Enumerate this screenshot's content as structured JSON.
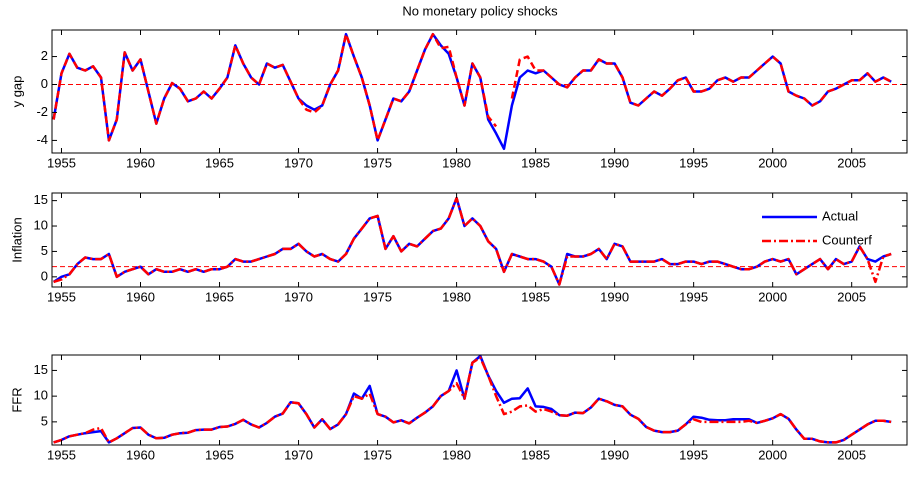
{
  "chart_data": [
    {
      "type": "line",
      "title": "No monetary policy shocks",
      "ylabel": "y gap",
      "x": [
        1954.5,
        1955,
        1955.5,
        1956,
        1956.5,
        1957,
        1957.5,
        1958,
        1958.5,
        1959,
        1959.5,
        1960,
        1960.5,
        1961,
        1961.5,
        1962,
        1962.5,
        1963,
        1963.5,
        1964,
        1964.5,
        1965,
        1965.5,
        1966,
        1966.5,
        1967,
        1967.5,
        1968,
        1968.5,
        1969,
        1969.5,
        1970,
        1970.5,
        1971,
        1971.5,
        1972,
        1972.5,
        1973,
        1973.5,
        1974,
        1974.5,
        1975,
        1975.5,
        1976,
        1976.5,
        1977,
        1977.5,
        1978,
        1978.5,
        1979,
        1979.5,
        1980,
        1980.5,
        1981,
        1981.5,
        1982,
        1982.5,
        1983,
        1983.5,
        1984,
        1984.5,
        1985,
        1985.5,
        1986,
        1986.5,
        1987,
        1987.5,
        1988,
        1988.5,
        1989,
        1989.5,
        1990,
        1990.5,
        1991,
        1991.5,
        1992,
        1992.5,
        1993,
        1993.5,
        1994,
        1994.5,
        1995,
        1995.5,
        1996,
        1996.5,
        1997,
        1997.5,
        1998,
        1998.5,
        1999,
        1999.5,
        2000,
        2000.5,
        2001,
        2001.5,
        2002,
        2002.5,
        2003,
        2003.5,
        2004,
        2004.5,
        2005,
        2005.5,
        2006,
        2006.5,
        2007,
        2007.5
      ],
      "series": [
        {
          "color": "#0000ff",
          "style": "solid",
          "values": [
            -2.5,
            0.8,
            2.2,
            1.2,
            1.0,
            1.3,
            0.5,
            -4.0,
            -2.5,
            2.3,
            1.0,
            1.8,
            -0.5,
            -2.8,
            -1.0,
            0.1,
            -0.3,
            -1.2,
            -1.0,
            -0.5,
            -1.0,
            -0.3,
            0.5,
            2.8,
            1.5,
            0.5,
            0.0,
            1.5,
            1.2,
            1.4,
            0.2,
            -1.0,
            -1.5,
            -1.8,
            -1.5,
            0.0,
            1.0,
            3.6,
            2.0,
            0.5,
            -1.5,
            -4.0,
            -2.5,
            -1.0,
            -1.2,
            -0.5,
            1.0,
            2.5,
            3.6,
            2.8,
            2.2,
            0.5,
            -1.5,
            1.5,
            0.5,
            -2.5,
            -3.5,
            -4.6,
            -1.5,
            0.5,
            1.0,
            0.8,
            1.0,
            0.5,
            0.0,
            -0.2,
            0.5,
            1.0,
            1.0,
            1.8,
            1.5,
            1.5,
            0.5,
            -1.3,
            -1.5,
            -1.0,
            -0.5,
            -0.8,
            -0.3,
            0.3,
            0.5,
            -0.5,
            -0.5,
            -0.3,
            0.3,
            0.5,
            0.2,
            0.5,
            0.5,
            1.0,
            1.5,
            2.0,
            1.5,
            -0.5,
            -0.8,
            -1.0,
            -1.5,
            -1.2,
            -0.5,
            -0.3,
            0.0,
            0.3,
            0.3,
            0.8,
            0.2,
            0.5,
            0.2
          ]
        },
        {
          "color": "#ff0000",
          "style": "dashed",
          "values": [
            -2.5,
            0.8,
            2.2,
            1.2,
            1.0,
            1.3,
            0.5,
            -4.0,
            -2.5,
            2.3,
            1.0,
            1.8,
            -0.5,
            -2.8,
            -1.0,
            0.1,
            -0.3,
            -1.2,
            -1.0,
            -0.5,
            -1.0,
            -0.3,
            0.5,
            2.8,
            1.5,
            0.5,
            0.0,
            1.5,
            1.2,
            1.4,
            0.2,
            -1.0,
            -1.8,
            -2.0,
            -1.5,
            0.0,
            1.0,
            3.6,
            2.0,
            0.5,
            -1.5,
            -4.0,
            -2.5,
            -1.0,
            -1.2,
            -0.5,
            1.0,
            2.5,
            3.6,
            2.6,
            2.7,
            0.5,
            -1.5,
            1.5,
            0.5,
            -2.3,
            -3.0,
            null,
            -1.0,
            1.8,
            2.0,
            1.0,
            1.0,
            0.5,
            0.0,
            -0.2,
            0.5,
            1.0,
            1.0,
            1.8,
            1.5,
            1.5,
            0.5,
            -1.3,
            -1.5,
            -1.0,
            -0.5,
            -0.8,
            -0.3,
            0.3,
            0.5,
            -0.5,
            -0.5,
            -0.3,
            0.3,
            0.5,
            0.2,
            0.5,
            0.5,
            1.0,
            1.5,
            2.0,
            1.5,
            -0.5,
            -0.8,
            -1.0,
            -1.5,
            -1.2,
            -0.5,
            -0.3,
            0.0,
            0.3,
            0.3,
            0.8,
            0.2,
            0.5,
            0.2
          ]
        }
      ],
      "hline": 0,
      "xlim": [
        1954.4,
        2008.5
      ],
      "ylim": [
        -4.9,
        3.9
      ],
      "xticks": [
        1955,
        1960,
        1965,
        1970,
        1975,
        1980,
        1985,
        1990,
        1995,
        2000,
        2005
      ],
      "yticks": [
        -4,
        -2,
        0,
        2
      ]
    },
    {
      "type": "line",
      "ylabel": "Inflation",
      "x": [
        1954.5,
        1955,
        1955.5,
        1956,
        1956.5,
        1957,
        1957.5,
        1958,
        1958.5,
        1959,
        1959.5,
        1960,
        1960.5,
        1961,
        1961.5,
        1962,
        1962.5,
        1963,
        1963.5,
        1964,
        1964.5,
        1965,
        1965.5,
        1966,
        1966.5,
        1967,
        1967.5,
        1968,
        1968.5,
        1969,
        1969.5,
        1970,
        1970.5,
        1971,
        1971.5,
        1972,
        1972.5,
        1973,
        1973.5,
        1974,
        1974.5,
        1975,
        1975.5,
        1976,
        1976.5,
        1977,
        1977.5,
        1978,
        1978.5,
        1979,
        1979.5,
        1980,
        1980.5,
        1981,
        1981.5,
        1982,
        1982.5,
        1983,
        1983.5,
        1984,
        1984.5,
        1985,
        1985.5,
        1986,
        1986.5,
        1987,
        1987.5,
        1988,
        1988.5,
        1989,
        1989.5,
        1990,
        1990.5,
        1991,
        1991.5,
        1992,
        1992.5,
        1993,
        1993.5,
        1994,
        1994.5,
        1995,
        1995.5,
        1996,
        1996.5,
        1997,
        1997.5,
        1998,
        1998.5,
        1999,
        1999.5,
        2000,
        2000.5,
        2001,
        2001.5,
        2002,
        2002.5,
        2003,
        2003.5,
        2004,
        2004.5,
        2005,
        2005.5,
        2006,
        2006.5,
        2007,
        2007.5
      ],
      "series": [
        {
          "name": "Actual",
          "color": "#0000ff",
          "style": "solid",
          "values": [
            -1.0,
            0.0,
            0.5,
            2.5,
            3.8,
            3.5,
            3.5,
            4.5,
            0.0,
            1.0,
            1.5,
            2.0,
            0.5,
            1.5,
            1.0,
            1.0,
            1.5,
            1.0,
            1.5,
            1.0,
            1.5,
            1.5,
            2.0,
            3.5,
            3.0,
            3.0,
            3.5,
            4.0,
            4.5,
            5.5,
            5.5,
            6.5,
            5.0,
            4.0,
            4.5,
            3.5,
            3.0,
            4.5,
            7.5,
            9.5,
            11.5,
            12.0,
            5.5,
            8.0,
            5.0,
            6.5,
            6.0,
            7.5,
            9.0,
            9.5,
            11.5,
            15.5,
            10.0,
            11.5,
            10.0,
            7.0,
            5.5,
            1.0,
            4.5,
            4.0,
            3.5,
            3.5,
            3.0,
            2.0,
            -1.5,
            4.5,
            4.0,
            4.0,
            4.5,
            5.5,
            3.5,
            6.5,
            6.0,
            3.0,
            3.0,
            3.0,
            3.0,
            3.5,
            2.5,
            2.5,
            3.0,
            3.0,
            2.5,
            3.0,
            3.0,
            2.5,
            2.0,
            1.5,
            1.5,
            2.0,
            3.0,
            3.5,
            3.0,
            3.5,
            0.5,
            1.5,
            2.5,
            3.5,
            1.5,
            3.5,
            2.5,
            3.0,
            6.0,
            3.5,
            3.0,
            4.0,
            4.5
          ]
        },
        {
          "name": "Counterf",
          "color": "#ff0000",
          "style": "dashdot",
          "values": [
            -1.0,
            -0.5,
            0.5,
            2.5,
            3.8,
            3.5,
            3.5,
            4.5,
            0.0,
            1.0,
            1.5,
            2.0,
            0.5,
            1.5,
            1.0,
            1.0,
            1.5,
            1.0,
            1.5,
            1.0,
            1.5,
            1.5,
            2.0,
            3.5,
            3.0,
            3.0,
            3.5,
            4.0,
            4.5,
            5.5,
            5.5,
            6.5,
            5.0,
            4.0,
            4.5,
            3.5,
            3.0,
            4.5,
            7.5,
            9.5,
            11.5,
            12.0,
            5.5,
            8.0,
            5.0,
            6.5,
            6.0,
            7.5,
            9.0,
            9.5,
            11.5,
            15.5,
            10.0,
            11.5,
            10.0,
            7.0,
            5.5,
            1.0,
            4.5,
            4.0,
            3.5,
            3.5,
            3.0,
            2.0,
            -1.5,
            4.0,
            4.0,
            4.0,
            4.5,
            5.5,
            3.5,
            6.5,
            6.0,
            3.0,
            3.0,
            3.0,
            3.0,
            3.5,
            2.5,
            2.5,
            3.0,
            3.0,
            2.5,
            3.0,
            3.0,
            2.5,
            2.0,
            1.5,
            1.5,
            2.0,
            3.0,
            3.5,
            3.0,
            3.5,
            0.5,
            1.5,
            2.5,
            3.5,
            1.5,
            3.5,
            2.5,
            3.0,
            6.0,
            3.5,
            -1.0,
            4.0,
            4.5
          ]
        }
      ],
      "hline": 2,
      "legend": "upper right",
      "xlim": [
        1954.4,
        2008.5
      ],
      "ylim": [
        -2,
        16.5
      ],
      "xticks": [
        1955,
        1960,
        1965,
        1970,
        1975,
        1980,
        1985,
        1990,
        1995,
        2000,
        2005
      ],
      "yticks": [
        0,
        5,
        10,
        15
      ]
    },
    {
      "type": "line",
      "ylabel": "FFR",
      "x": [
        1954.5,
        1955,
        1955.5,
        1956,
        1956.5,
        1957,
        1957.5,
        1958,
        1958.5,
        1959,
        1959.5,
        1960,
        1960.5,
        1961,
        1961.5,
        1962,
        1962.5,
        1963,
        1963.5,
        1964,
        1964.5,
        1965,
        1965.5,
        1966,
        1966.5,
        1967,
        1967.5,
        1968,
        1968.5,
        1969,
        1969.5,
        1970,
        1970.5,
        1971,
        1971.5,
        1972,
        1972.5,
        1973,
        1973.5,
        1974,
        1974.5,
        1975,
        1975.5,
        1976,
        1976.5,
        1977,
        1977.5,
        1978,
        1978.5,
        1979,
        1979.5,
        1980,
        1980.5,
        1981,
        1981.5,
        1982,
        1982.5,
        1983,
        1983.5,
        1984,
        1984.5,
        1985,
        1985.5,
        1986,
        1986.5,
        1987,
        1987.5,
        1988,
        1988.5,
        1989,
        1989.5,
        1990,
        1990.5,
        1991,
        1991.5,
        1992,
        1992.5,
        1993,
        1993.5,
        1994,
        1994.5,
        1995,
        1995.5,
        1996,
        1996.5,
        1997,
        1997.5,
        1998,
        1998.5,
        1999,
        1999.5,
        2000,
        2000.5,
        2001,
        2001.5,
        2002,
        2002.5,
        2003,
        2003.5,
        2004,
        2004.5,
        2005,
        2005.5,
        2006,
        2006.5,
        2007,
        2007.5
      ],
      "series": [
        {
          "color": "#0000ff",
          "style": "solid",
          "values": [
            1.0,
            1.5,
            2.2,
            2.5,
            2.8,
            3.0,
            3.2,
            1.0,
            1.8,
            2.8,
            3.8,
            3.9,
            2.5,
            1.8,
            1.9,
            2.5,
            2.8,
            2.9,
            3.4,
            3.5,
            3.5,
            4.0,
            4.1,
            4.6,
            5.4,
            4.5,
            3.9,
            4.8,
            6.0,
            6.6,
            8.8,
            8.6,
            6.5,
            3.9,
            5.5,
            3.6,
            4.5,
            6.5,
            10.5,
            9.5,
            12.0,
            6.5,
            6.0,
            4.9,
            5.3,
            4.7,
            5.8,
            6.8,
            8.0,
            10.0,
            11.0,
            15.0,
            9.5,
            16.5,
            17.8,
            14.0,
            11.0,
            8.7,
            9.5,
            9.6,
            11.5,
            8.0,
            7.9,
            7.5,
            6.3,
            6.2,
            6.8,
            6.7,
            7.8,
            9.5,
            9.0,
            8.3,
            8.0,
            6.4,
            5.6,
            4.0,
            3.3,
            3.0,
            3.0,
            3.3,
            4.5,
            6.0,
            5.8,
            5.4,
            5.3,
            5.3,
            5.5,
            5.5,
            5.5,
            4.8,
            5.2,
            5.7,
            6.5,
            5.6,
            3.5,
            1.7,
            1.7,
            1.2,
            1.0,
            1.0,
            1.5,
            2.5,
            3.5,
            4.5,
            5.2,
            5.2,
            5.0
          ]
        },
        {
          "color": "#ff0000",
          "style": "dashdot",
          "values": [
            1.0,
            1.5,
            2.2,
            2.5,
            2.8,
            3.5,
            3.8,
            1.0,
            1.8,
            2.8,
            3.8,
            3.9,
            2.5,
            1.8,
            1.9,
            2.5,
            2.8,
            2.9,
            3.4,
            3.5,
            3.5,
            4.0,
            4.1,
            4.6,
            5.4,
            4.5,
            3.9,
            4.8,
            6.0,
            6.6,
            8.8,
            8.6,
            6.5,
            3.9,
            5.5,
            3.6,
            4.5,
            6.5,
            10.0,
            9.5,
            10.5,
            6.5,
            6.0,
            4.9,
            5.3,
            4.7,
            5.8,
            6.8,
            8.0,
            10.0,
            11.0,
            12.5,
            9.5,
            16.5,
            17.5,
            14.0,
            10.0,
            6.5,
            7.0,
            8.0,
            8.2,
            7.0,
            7.5,
            7.0,
            6.3,
            6.2,
            6.8,
            6.7,
            7.8,
            9.5,
            9.0,
            8.3,
            8.0,
            6.4,
            5.6,
            4.0,
            3.3,
            3.0,
            3.0,
            3.3,
            4.5,
            5.5,
            5.0,
            5.0,
            5.0,
            5.0,
            5.0,
            5.0,
            5.2,
            4.8,
            5.2,
            5.7,
            6.5,
            5.6,
            3.5,
            1.7,
            1.7,
            1.2,
            1.0,
            1.0,
            1.5,
            2.5,
            3.5,
            4.5,
            5.2,
            5.2,
            5.0
          ]
        }
      ],
      "xlim": [
        1954.4,
        2008.5
      ],
      "ylim": [
        0.5,
        18
      ],
      "xticks": [
        1955,
        1960,
        1965,
        1970,
        1975,
        1980,
        1985,
        1990,
        1995,
        2000,
        2005
      ],
      "yticks": [
        5,
        10,
        15
      ]
    }
  ]
}
